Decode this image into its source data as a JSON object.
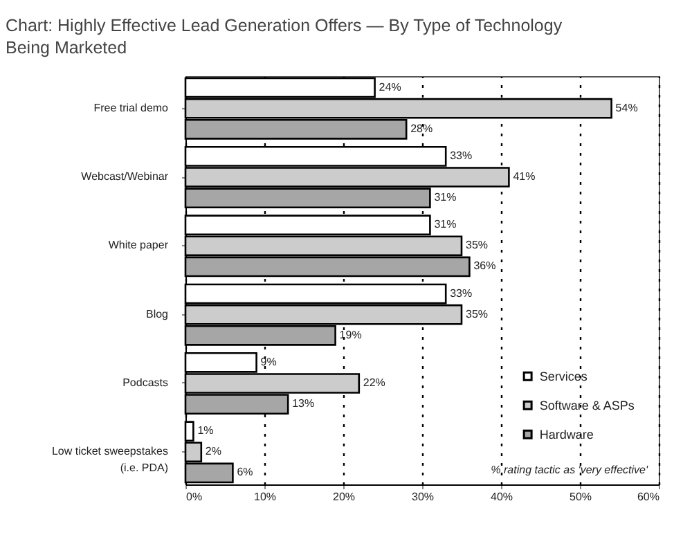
{
  "chart_data": {
    "type": "bar",
    "orientation": "horizontal",
    "title": "Chart: Highly Effective Lead Generation Offers — By Type of Technology Being Marketed",
    "categories": [
      "Free trial demo",
      "Webcast/Webinar",
      "White paper",
      "Blog",
      "Podcasts",
      "Low ticket sweepstakes (i.e. PDA)"
    ],
    "series": [
      {
        "name": "Services",
        "color": "#ffffff",
        "values": [
          24,
          33,
          31,
          33,
          9,
          1
        ],
        "value_labels": [
          "24%",
          "33%",
          "31%",
          "33%",
          "9%",
          "1%"
        ]
      },
      {
        "name": "Software & ASPs",
        "color": "#cccccc",
        "values": [
          54,
          41,
          35,
          35,
          22,
          2
        ],
        "value_labels": [
          "54%",
          "41%",
          "35%",
          "35%",
          "22%",
          "2%"
        ]
      },
      {
        "name": "Hardware",
        "color": "#a6a6a6",
        "values": [
          28,
          31,
          36,
          19,
          13,
          6
        ],
        "value_labels": [
          "28%",
          "31%",
          "36%",
          "19%",
          "13%",
          "6%"
        ]
      }
    ],
    "xlim": [
      0,
      60
    ],
    "xticks": [
      {
        "value": 0,
        "label": "0%"
      },
      {
        "value": 10,
        "label": "10%"
      },
      {
        "value": 20,
        "label": "20%"
      },
      {
        "value": 30,
        "label": "30%"
      },
      {
        "value": 40,
        "label": "40%"
      },
      {
        "value": 50,
        "label": "50%"
      },
      {
        "value": 60,
        "label": "60%"
      }
    ],
    "grid": "x",
    "legend": "right",
    "annotations": [
      "% rating tactic as 'very effective'"
    ]
  }
}
